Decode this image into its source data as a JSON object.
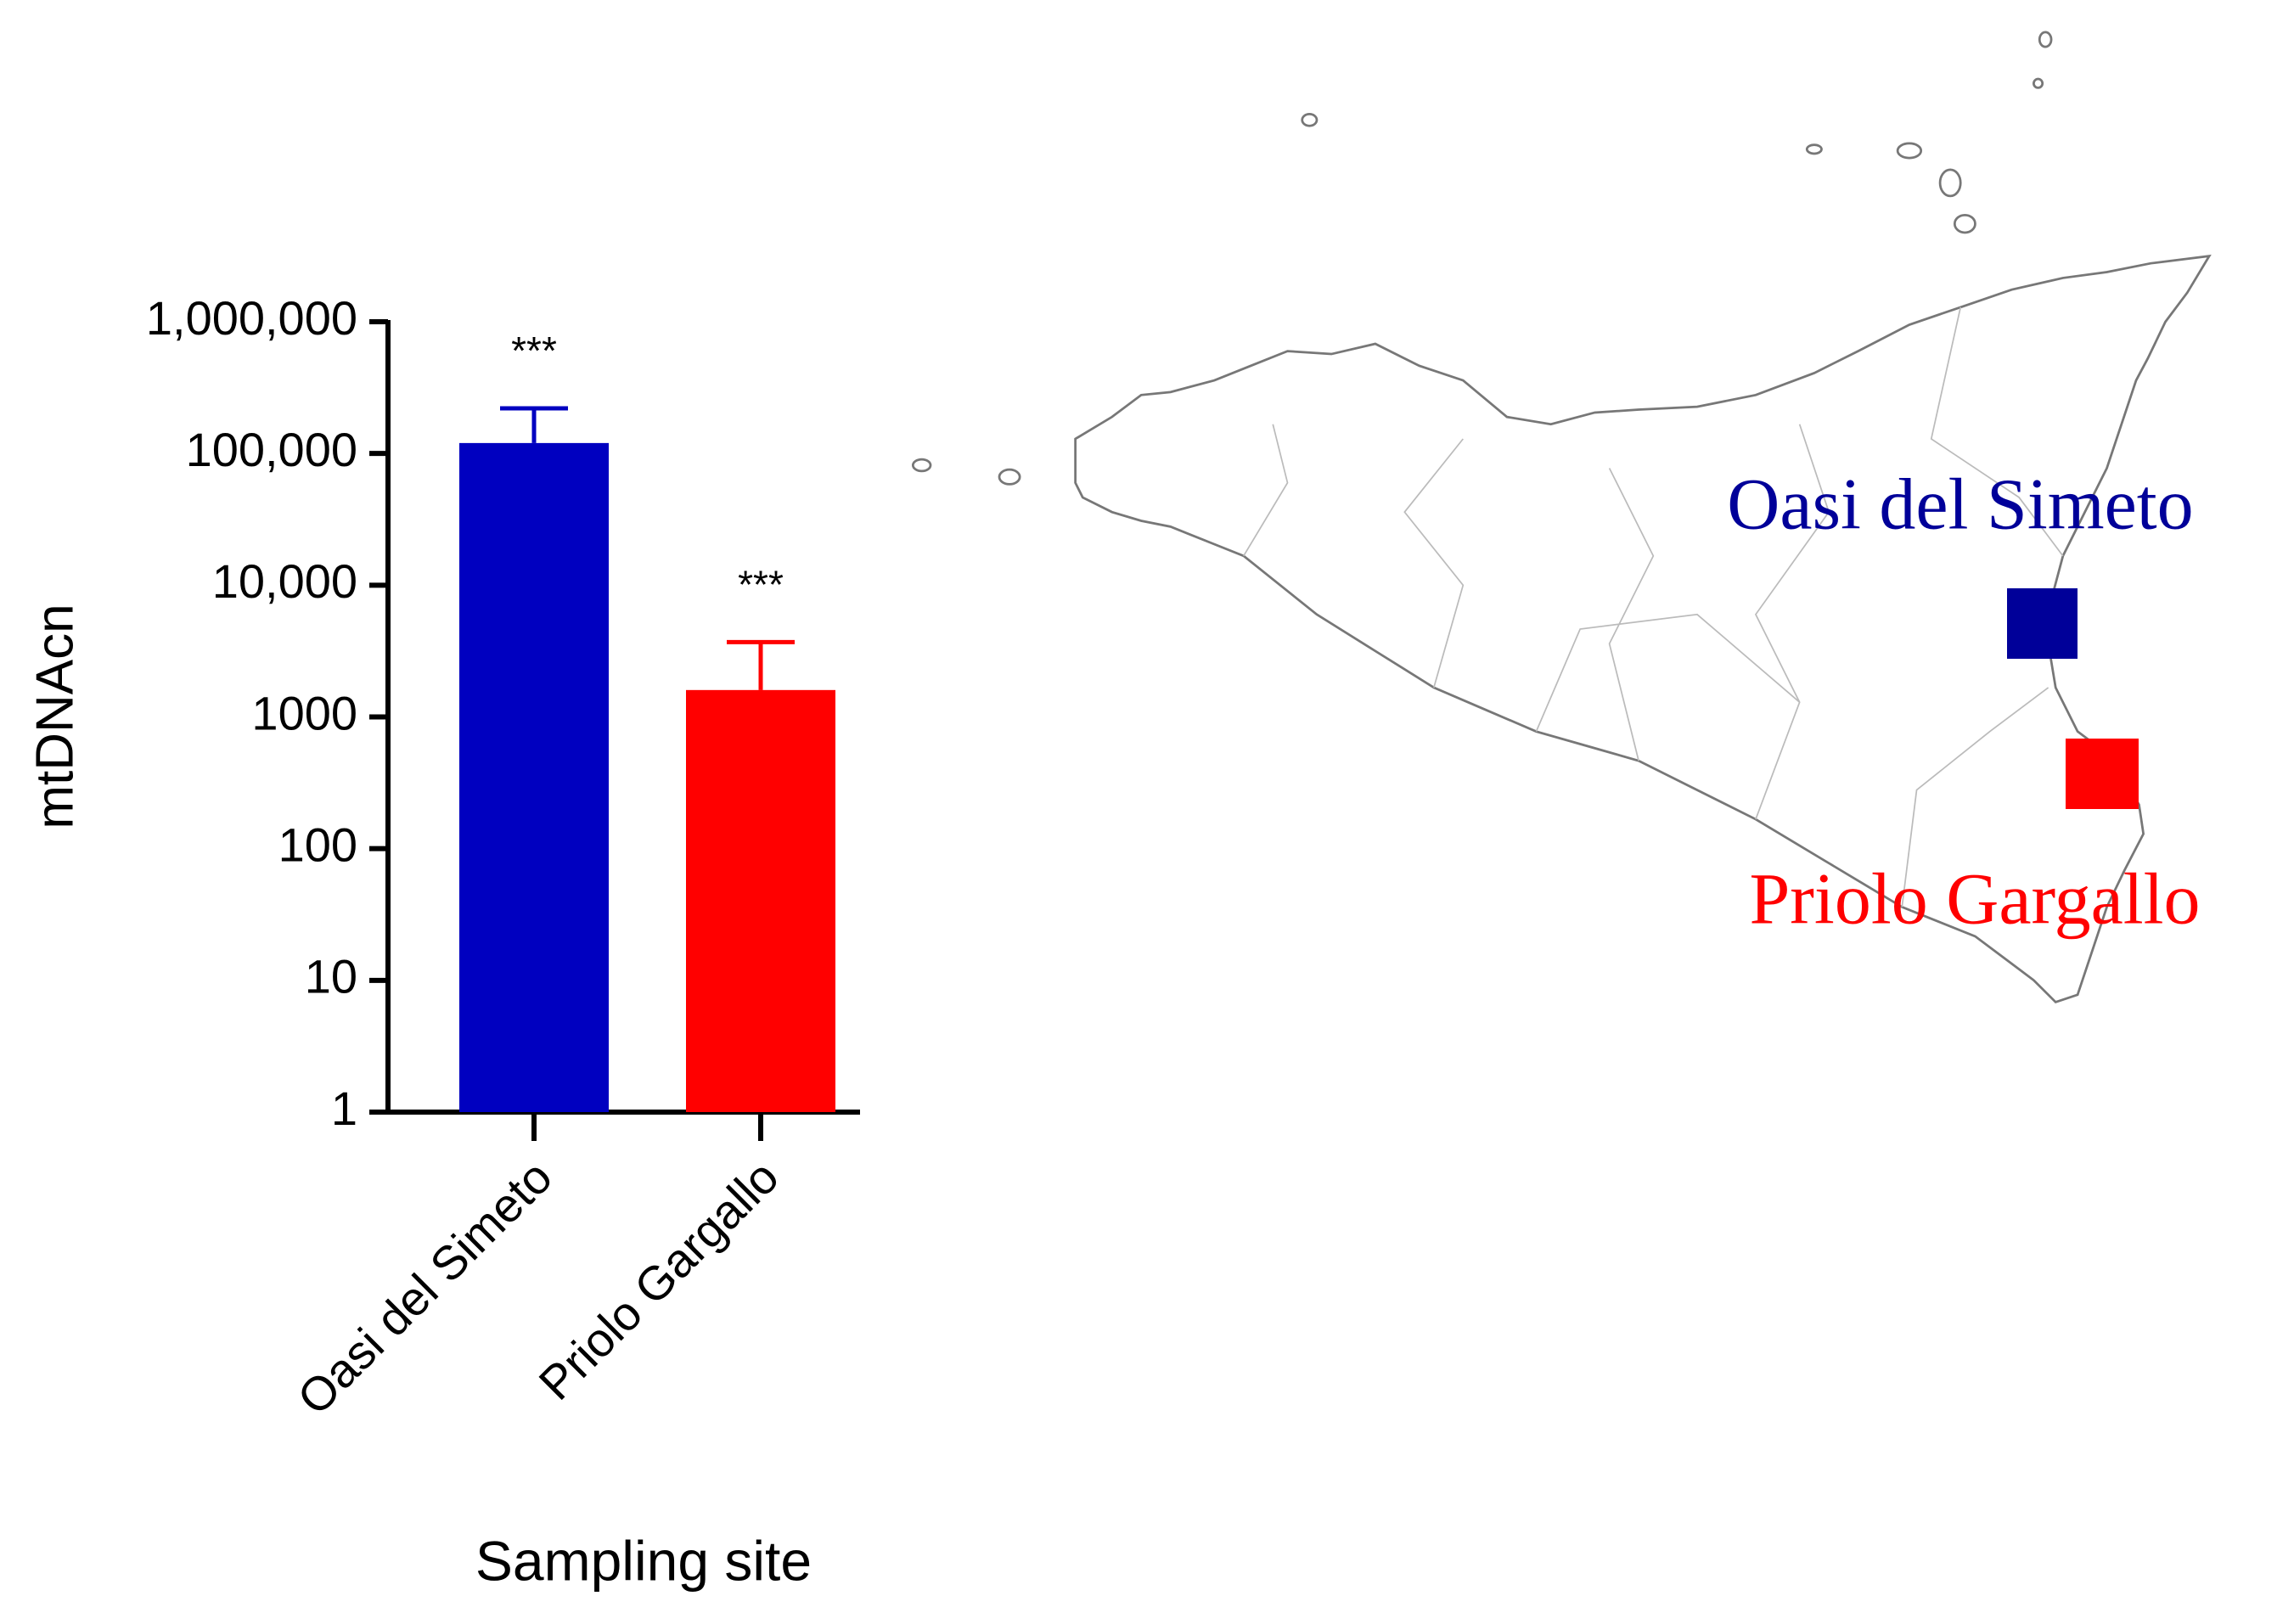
{
  "chart_data": {
    "type": "bar",
    "ylabel": "mtDNAcn",
    "xlabel": "Sampling site",
    "categories": [
      "Oasi del Simeto",
      "Priolo Gargallo"
    ],
    "values": [
      120000,
      1600
    ],
    "errors": [
      100000,
      2100
    ],
    "colors": [
      "#0000c0",
      "#ff0000"
    ],
    "annotations": [
      "***",
      "***"
    ],
    "log_scale": true,
    "ylim": [
      1,
      1000000
    ],
    "yticks": [
      1,
      10,
      100,
      1000,
      {
        "value": 10000,
        "label": "10,000"
      },
      {
        "value": 100000,
        "label": "100,000"
      },
      {
        "value": 1000000,
        "label": "1,000,000"
      }
    ]
  },
  "map": {
    "labels": [
      "Oasi del Simeto",
      "Priolo Gargallo"
    ],
    "colors": [
      "#000099",
      "#ff0000"
    ]
  }
}
